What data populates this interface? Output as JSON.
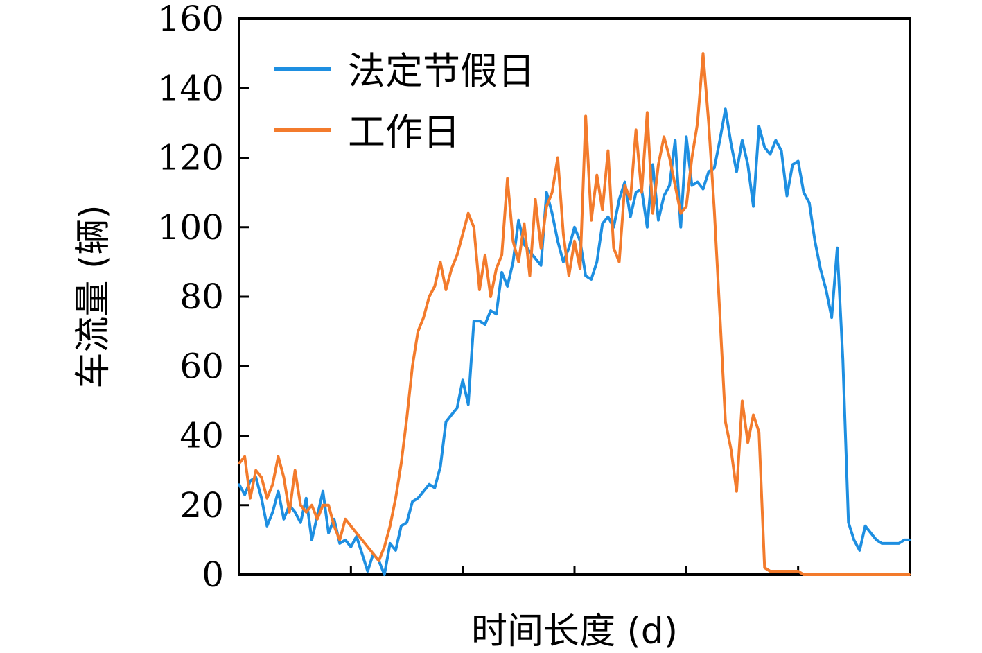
{
  "chart_data": {
    "type": "line",
    "title": "",
    "xlabel": "时间长度 (d)",
    "ylabel": "车流量 (辆)",
    "ylim": [
      0,
      160
    ],
    "xlim": [
      0,
      120
    ],
    "yticks": [
      "0",
      "20",
      "40",
      "60",
      "80",
      "100",
      "120",
      "140",
      "160"
    ],
    "grid": false,
    "legend_position": "top-left",
    "series": [
      {
        "name": "法定节假日",
        "color": "#1e8fe1",
        "x": [
          0,
          1,
          2,
          3,
          4,
          5,
          6,
          7,
          8,
          9,
          10,
          11,
          12,
          13,
          14,
          15,
          16,
          17,
          18,
          19,
          20,
          21,
          22,
          23,
          24,
          25,
          26,
          27,
          28,
          29,
          30,
          31,
          32,
          33,
          34,
          35,
          36,
          37,
          38,
          39,
          40,
          41,
          42,
          43,
          44,
          45,
          46,
          47,
          48,
          49,
          50,
          51,
          52,
          53,
          54,
          55,
          56,
          57,
          58,
          59,
          60,
          61,
          62,
          63,
          64,
          65,
          66,
          67,
          68,
          69,
          70,
          71,
          72,
          73,
          74,
          75,
          76,
          77,
          78,
          79,
          80,
          81,
          82,
          83,
          84,
          85,
          86,
          87,
          88,
          89,
          90,
          91,
          92,
          93,
          94,
          95,
          96,
          97,
          98,
          99,
          100,
          101,
          102,
          103,
          104,
          105,
          106,
          107,
          108,
          109,
          110,
          111,
          112,
          113,
          114,
          115,
          116,
          117,
          118,
          119,
          120
        ],
        "values": [
          26,
          23,
          27,
          28,
          22,
          14,
          18,
          24,
          16,
          20,
          18,
          15,
          22,
          10,
          17,
          24,
          12,
          16,
          9,
          10,
          8,
          11,
          6,
          1,
          6,
          4,
          0,
          9,
          7,
          14,
          15,
          21,
          22,
          24,
          26,
          25,
          31,
          44,
          46,
          48,
          56,
          49,
          73,
          73,
          72,
          76,
          75,
          87,
          83,
          90,
          102,
          95,
          93,
          91,
          89,
          110,
          104,
          96,
          90,
          94,
          100,
          96,
          86,
          85,
          90,
          101,
          103,
          100,
          108,
          113,
          103,
          110,
          111,
          100,
          118,
          102,
          109,
          112,
          125,
          100,
          126,
          112,
          113,
          111,
          116,
          117,
          125,
          134,
          124,
          116,
          125,
          118,
          106,
          129,
          123,
          121,
          125,
          122,
          109,
          118,
          119,
          110,
          107,
          96,
          88,
          82,
          74,
          94,
          62,
          15,
          10,
          7,
          14,
          12,
          10,
          9,
          9,
          9,
          9,
          10,
          10
        ]
      },
      {
        "name": "工作日",
        "color": "#f37b2c",
        "x": [
          0,
          1,
          2,
          3,
          4,
          5,
          6,
          7,
          8,
          9,
          10,
          11,
          12,
          13,
          14,
          15,
          16,
          17,
          18,
          19,
          20,
          21,
          22,
          23,
          24,
          25,
          26,
          27,
          28,
          29,
          30,
          31,
          32,
          33,
          34,
          35,
          36,
          37,
          38,
          39,
          40,
          41,
          42,
          43,
          44,
          45,
          46,
          47,
          48,
          49,
          50,
          51,
          52,
          53,
          54,
          55,
          56,
          57,
          58,
          59,
          60,
          61,
          62,
          63,
          64,
          65,
          66,
          67,
          68,
          69,
          70,
          71,
          72,
          73,
          74,
          75,
          76,
          77,
          78,
          79,
          80,
          81,
          82,
          83,
          84,
          85,
          86,
          87,
          88,
          89,
          90,
          91,
          92,
          93,
          94,
          95,
          96,
          97,
          98,
          99,
          100,
          101,
          102,
          103,
          104,
          105,
          106,
          107,
          108,
          109,
          110,
          111,
          112,
          113,
          114,
          115,
          116,
          117,
          118,
          119,
          120
        ],
        "values": [
          32,
          34,
          22,
          30,
          28,
          22,
          26,
          34,
          28,
          18,
          30,
          20,
          18,
          20,
          16,
          20,
          20,
          14,
          10,
          16,
          14,
          12,
          10,
          8,
          6,
          4,
          8,
          14,
          22,
          32,
          45,
          60,
          70,
          74,
          80,
          83,
          90,
          82,
          88,
          92,
          98,
          104,
          100,
          82,
          92,
          80,
          88,
          92,
          114,
          96,
          90,
          101,
          86,
          108,
          94,
          106,
          110,
          120,
          98,
          86,
          96,
          88,
          132,
          102,
          115,
          105,
          122,
          94,
          90,
          112,
          108,
          128,
          110,
          133,
          104,
          118,
          126,
          120,
          112,
          104,
          106,
          120,
          130,
          150,
          130,
          105,
          75,
          44,
          36,
          24,
          50,
          38,
          46,
          41,
          2,
          1,
          1,
          1,
          1,
          1,
          1,
          0,
          0,
          0,
          0,
          0,
          0,
          0,
          0,
          0,
          0,
          0,
          0,
          0,
          0,
          0,
          0,
          0,
          0,
          0,
          0
        ]
      }
    ]
  }
}
